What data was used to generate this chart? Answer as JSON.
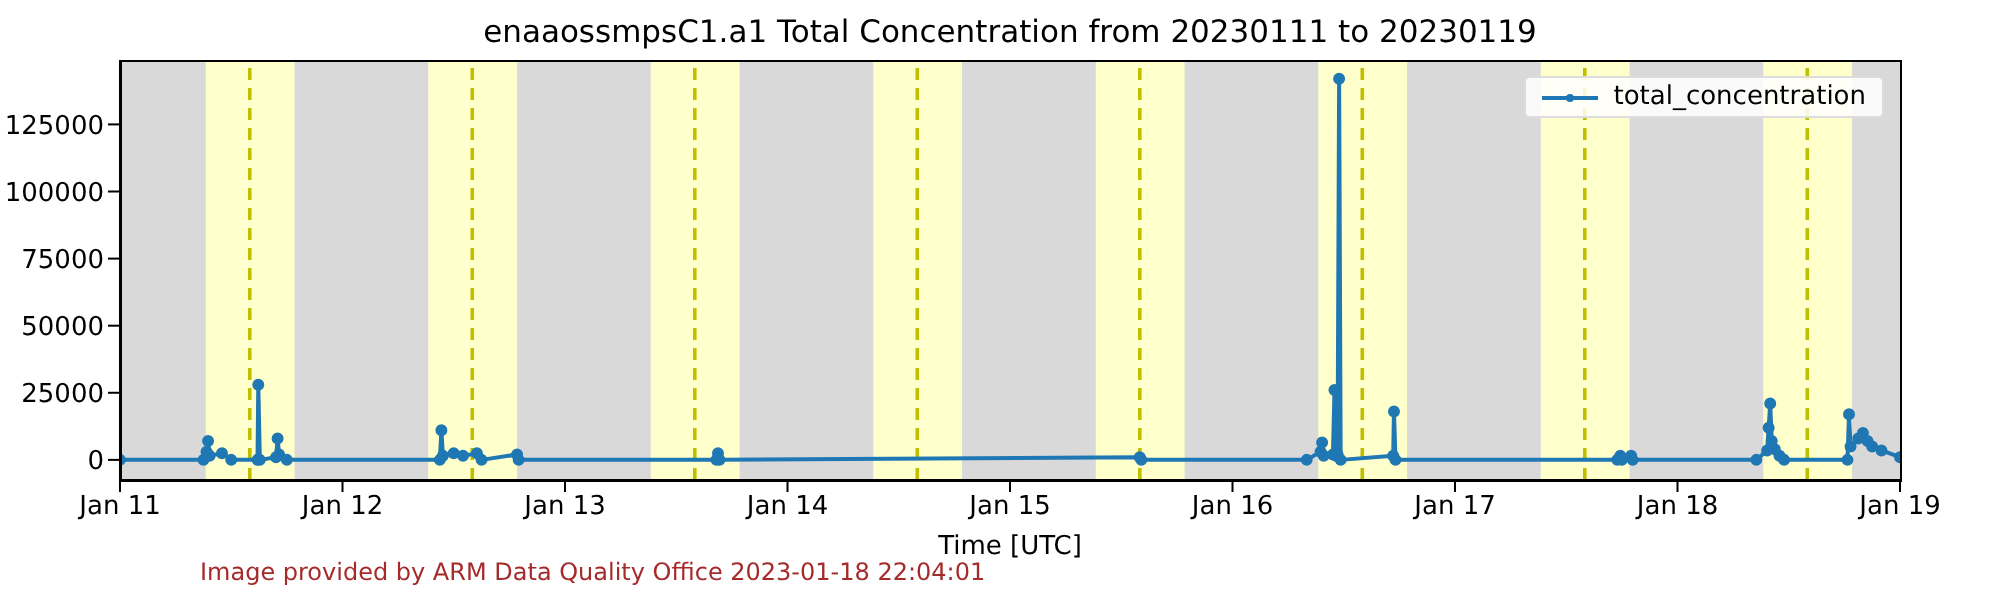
{
  "chart_data": {
    "type": "line",
    "title": "enaaossmpsC1.a1 Total Concentration from 20230111 to 20230119",
    "xlabel": "Time [UTC]",
    "annotations": [
      "Image provided by ARM Data Quality Office 2023-01-18 22:04:01"
    ],
    "x": [
      "2023-01-11T00:00",
      "2023-01-11T09:00",
      "2023-01-11T09:20",
      "2023-01-11T09:30",
      "2023-01-11T09:40",
      "2023-01-11T11:00",
      "2023-01-11T12:00",
      "2023-01-11T14:50",
      "2023-01-11T14:55",
      "2023-01-11T15:05",
      "2023-01-11T16:50",
      "2023-01-11T17:00",
      "2023-01-11T17:10",
      "2023-01-11T18:00",
      "2023-01-12T10:30",
      "2023-01-12T10:40",
      "2023-01-12T10:50",
      "2023-01-12T12:00",
      "2023-01-12T13:00",
      "2023-01-12T14:30",
      "2023-01-12T15:00",
      "2023-01-12T18:50",
      "2023-01-12T19:00",
      "2023-01-13T16:20",
      "2023-01-13T16:30",
      "2023-01-13T16:40",
      "2023-01-15T14:00",
      "2023-01-15T14:10",
      "2023-01-16T08:00",
      "2023-01-16T09:30",
      "2023-01-16T09:40",
      "2023-01-16T09:50",
      "2023-01-16T10:50",
      "2023-01-16T11:00",
      "2023-01-16T11:10",
      "2023-01-16T11:20",
      "2023-01-16T11:30",
      "2023-01-16T11:40",
      "2023-01-16T17:20",
      "2023-01-16T17:25",
      "2023-01-16T17:35",
      "2023-01-17T17:30",
      "2023-01-17T17:50",
      "2023-01-17T18:00",
      "2023-01-17T19:00",
      "2023-01-17T19:10",
      "2023-01-18T08:30",
      "2023-01-18T09:40",
      "2023-01-18T09:50",
      "2023-01-18T10:00",
      "2023-01-18T10:10",
      "2023-01-18T10:30",
      "2023-01-18T11:00",
      "2023-01-18T11:30",
      "2023-01-18T18:20",
      "2023-01-18T18:30",
      "2023-01-18T18:40",
      "2023-01-18T19:30",
      "2023-01-18T20:00",
      "2023-01-18T20:30",
      "2023-01-18T21:00",
      "2023-01-18T22:00",
      "2023-01-19T00:00"
    ],
    "series": [
      {
        "name": "total_concentration",
        "color": "#1f77b4",
        "values": [
          0,
          0,
          3000,
          7000,
          1500,
          2500,
          0,
          0,
          28000,
          0,
          1000,
          8000,
          2000,
          0,
          0,
          11000,
          1500,
          2500,
          1500,
          2500,
          0,
          2000,
          0,
          0,
          2500,
          0,
          1000,
          0,
          0,
          3000,
          6500,
          1500,
          2000,
          26000,
          1500,
          2000,
          142000,
          0,
          1500,
          18000,
          0,
          0,
          1500,
          0,
          1500,
          0,
          0,
          3500,
          12000,
          21000,
          7000,
          4000,
          1500,
          0,
          0,
          17000,
          5000,
          8000,
          10000,
          7000,
          5000,
          3500,
          1000
        ]
      }
    ],
    "xlim": [
      "2023-01-11",
      "2023-01-19"
    ],
    "xticks": [
      {
        "value": "2023-01-11",
        "label": "Jan 11"
      },
      {
        "value": "2023-01-12",
        "label": "Jan 12"
      },
      {
        "value": "2023-01-13",
        "label": "Jan 13"
      },
      {
        "value": "2023-01-14",
        "label": "Jan 14"
      },
      {
        "value": "2023-01-15",
        "label": "Jan 15"
      },
      {
        "value": "2023-01-16",
        "label": "Jan 16"
      },
      {
        "value": "2023-01-17",
        "label": "Jan 17"
      },
      {
        "value": "2023-01-18",
        "label": "Jan 18"
      },
      {
        "value": "2023-01-19",
        "label": "Jan 19"
      }
    ],
    "ylim": [
      -7500,
      149000
    ],
    "yticks": [
      0,
      25000,
      50000,
      75000,
      100000,
      125000
    ],
    "bands": [
      {
        "axis": "x",
        "from": "2023-01-11T09:15",
        "to": "2023-01-11T18:50",
        "color": "#ffffcc"
      },
      {
        "axis": "x",
        "from": "2023-01-12T09:15",
        "to": "2023-01-12T18:50",
        "color": "#ffffcc"
      },
      {
        "axis": "x",
        "from": "2023-01-13T09:15",
        "to": "2023-01-13T18:50",
        "color": "#ffffcc"
      },
      {
        "axis": "x",
        "from": "2023-01-14T09:15",
        "to": "2023-01-14T18:50",
        "color": "#ffffcc"
      },
      {
        "axis": "x",
        "from": "2023-01-15T09:15",
        "to": "2023-01-15T18:50",
        "color": "#ffffcc"
      },
      {
        "axis": "x",
        "from": "2023-01-16T09:15",
        "to": "2023-01-16T18:50",
        "color": "#ffffcc"
      },
      {
        "axis": "x",
        "from": "2023-01-17T09:15",
        "to": "2023-01-17T18:50",
        "color": "#ffffcc"
      },
      {
        "axis": "x",
        "from": "2023-01-18T09:15",
        "to": "2023-01-18T18:50",
        "color": "#ffffcc"
      }
    ],
    "ref_lines": [
      {
        "axis": "x",
        "value": "2023-01-11T14:00",
        "color": "#bfbf00",
        "line_style": "dashed"
      },
      {
        "axis": "x",
        "value": "2023-01-12T14:00",
        "color": "#bfbf00",
        "line_style": "dashed"
      },
      {
        "axis": "x",
        "value": "2023-01-13T14:00",
        "color": "#bfbf00",
        "line_style": "dashed"
      },
      {
        "axis": "x",
        "value": "2023-01-14T14:00",
        "color": "#bfbf00",
        "line_style": "dashed"
      },
      {
        "axis": "x",
        "value": "2023-01-15T14:00",
        "color": "#bfbf00",
        "line_style": "dashed"
      },
      {
        "axis": "x",
        "value": "2023-01-16T14:00",
        "color": "#bfbf00",
        "line_style": "dashed"
      },
      {
        "axis": "x",
        "value": "2023-01-17T14:00",
        "color": "#bfbf00",
        "line_style": "dashed"
      },
      {
        "axis": "x",
        "value": "2023-01-18T14:00",
        "color": "#bfbf00",
        "line_style": "dashed"
      }
    ],
    "legend": "top right",
    "marker": "circle",
    "line_style": "solid"
  }
}
